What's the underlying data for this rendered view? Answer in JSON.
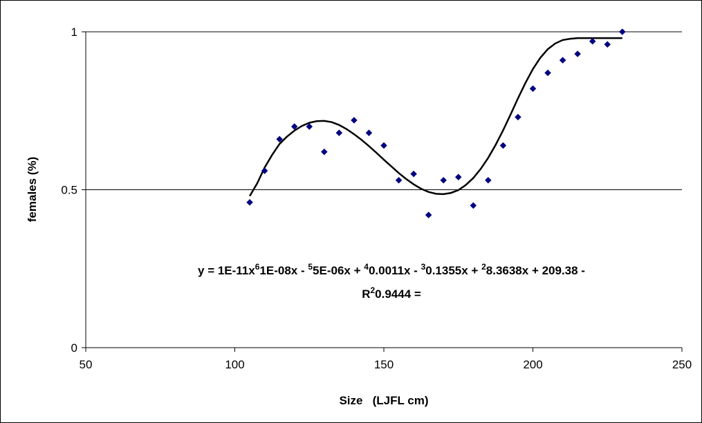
{
  "chart_data": {
    "type": "scatter",
    "xlabel": "Size   (LJFL cm)",
    "ylabel": "females (%)",
    "xlim": [
      50,
      250
    ],
    "ylim": [
      0,
      1
    ],
    "xticks": [
      "50",
      "100",
      "150",
      "200",
      "250"
    ],
    "yticks": [
      "0",
      "0.5",
      "1"
    ],
    "grid": "horizontal major gridlines",
    "marker_color": "#000080",
    "trendline_color": "#000000",
    "series": [
      {
        "x": [
          105,
          110,
          115,
          120,
          125,
          130,
          135,
          140,
          145,
          150,
          155,
          160,
          165,
          170,
          175,
          180,
          185,
          190,
          195,
          200,
          205,
          210,
          215,
          220,
          225,
          230
        ],
        "values": [
          0.46,
          0.56,
          0.66,
          0.7,
          0.7,
          0.62,
          0.68,
          0.72,
          0.68,
          0.64,
          0.53,
          0.55,
          0.42,
          0.53,
          0.54,
          0.45,
          0.53,
          0.64,
          0.73,
          0.82,
          0.87,
          0.91,
          0.93,
          0.97,
          0.96,
          1.0
        ]
      }
    ],
    "trendline": {
      "type": "polynomial",
      "x": [
        105,
        107.5,
        110,
        112.5,
        115,
        117.5,
        120,
        122.5,
        125,
        127.5,
        130,
        132.5,
        135,
        137.5,
        140,
        142.5,
        145,
        147.5,
        150,
        152.5,
        155,
        157.5,
        160,
        162.5,
        165,
        167.5,
        170,
        172.5,
        175,
        177.5,
        180,
        182.5,
        185,
        187.5,
        190,
        192.5,
        195,
        197.5,
        200,
        202.5,
        205,
        207.5,
        210,
        212.5,
        215,
        217.5,
        220,
        222.5,
        225,
        227.5,
        230
      ],
      "y": [
        0.48,
        0.52,
        0.57,
        0.61,
        0.645,
        0.668,
        0.687,
        0.702,
        0.712,
        0.717,
        0.718,
        0.714,
        0.705,
        0.692,
        0.676,
        0.658,
        0.638,
        0.617,
        0.595,
        0.574,
        0.553,
        0.534,
        0.517,
        0.503,
        0.493,
        0.487,
        0.486,
        0.49,
        0.499,
        0.515,
        0.537,
        0.566,
        0.601,
        0.642,
        0.688,
        0.738,
        0.789,
        0.838,
        0.882,
        0.918,
        0.945,
        0.963,
        0.974,
        0.978,
        0.98,
        0.98,
        0.98,
        0.98,
        0.98,
        0.98,
        0.98
      ]
    },
    "annotation_line1_parts": [
      "y = 1E-11x",
      "6",
      "1E-08x - ",
      "5",
      "5E-06x + ",
      "4",
      "0.0011x - ",
      "3",
      "0.1355x + ",
      "2",
      "8.3638x + 209.38 -"
    ],
    "annotation_line2_parts": [
      "R",
      "2",
      "0.9444 ="
    ]
  }
}
